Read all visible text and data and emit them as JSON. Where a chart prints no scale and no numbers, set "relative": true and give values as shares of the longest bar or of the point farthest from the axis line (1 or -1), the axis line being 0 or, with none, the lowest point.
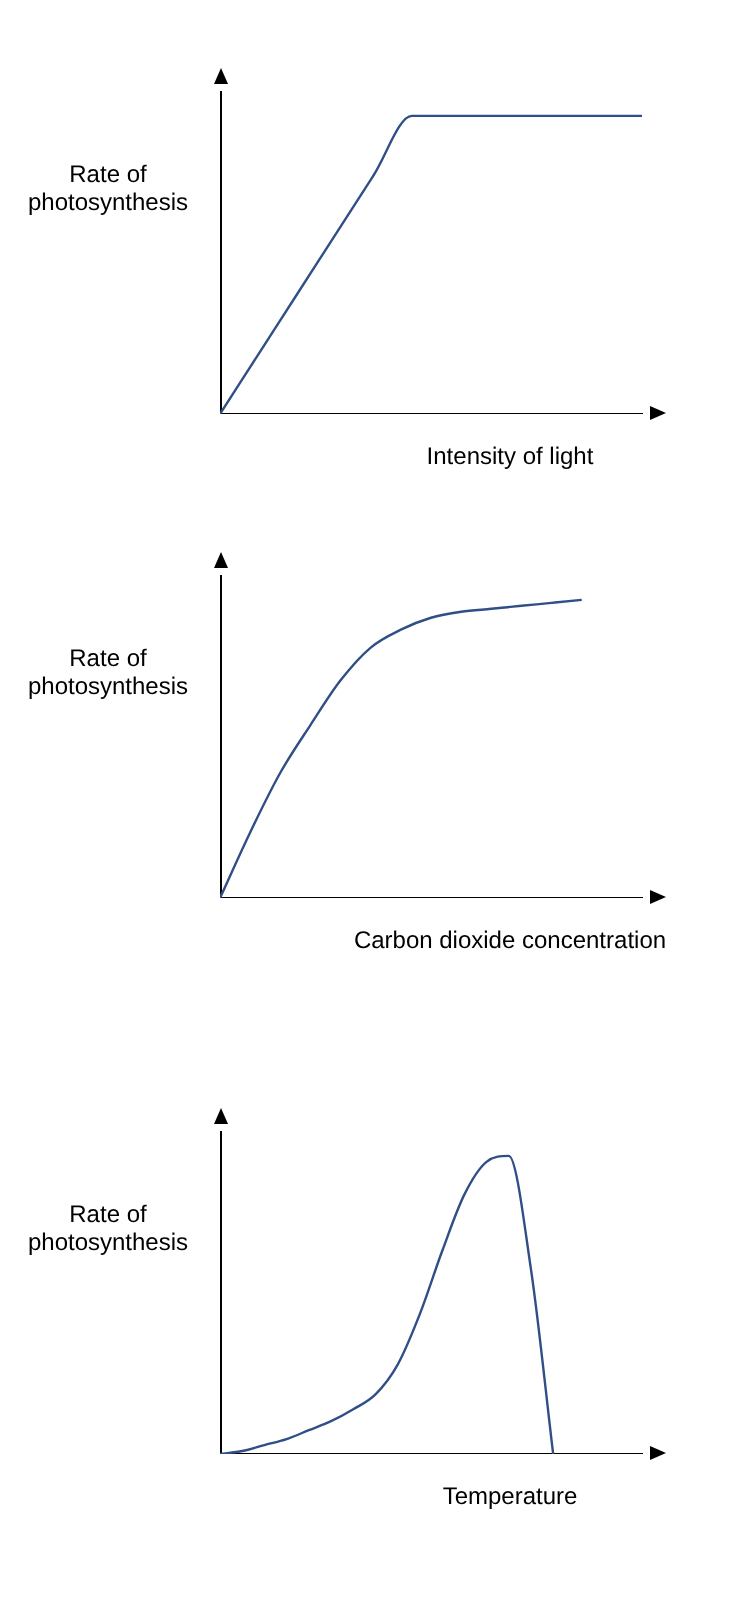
{
  "chart_data": [
    {
      "type": "line",
      "relative": true,
      "ylabel": "Rate of\nphotosynthesis",
      "xlabel": "Intensity of light",
      "marker": "none",
      "categories": [
        null,
        null,
        null,
        null,
        null,
        null,
        null,
        null,
        null,
        null,
        null,
        null
      ],
      "series": [
        {
          "color": "#2f4f86",
          "values": [
            0,
            0.2,
            0.4,
            0.6,
            0.8,
            1,
            1,
            1,
            1,
            1,
            1,
            1
          ]
        }
      ]
    },
    {
      "type": "line",
      "relative": true,
      "ylabel": "Rate of\nphotosynthesis",
      "xlabel": "Carbon dioxide concentration",
      "marker": "none",
      "categories": [
        null,
        null,
        null,
        null,
        null,
        null,
        null,
        null,
        null,
        null,
        null,
        null,
        null,
        null,
        null
      ],
      "series": [
        {
          "color": "#2f4f86",
          "values": [
            0,
            0.22,
            0.42,
            0.58,
            0.73,
            0.84,
            0.9,
            0.94,
            0.96,
            0.97,
            0.98,
            0.99,
            1,
            null,
            null
          ]
        }
      ]
    },
    {
      "type": "line",
      "relative": true,
      "ylabel": "Rate of\nphotosynthesis",
      "xlabel": "Temperature",
      "marker": "none",
      "categories": [
        null,
        null,
        null,
        null,
        null,
        null,
        null,
        null,
        null,
        null,
        null,
        null,
        null,
        null,
        null,
        null,
        null,
        null,
        null,
        null
      ],
      "series": [
        {
          "color": "#2f4f86",
          "values": [
            0,
            0.01,
            0.03,
            0.05,
            0.08,
            0.11,
            0.15,
            0.2,
            0.3,
            0.47,
            0.68,
            0.87,
            0.98,
            1,
            0.62,
            0,
            null,
            null,
            null,
            null
          ]
        }
      ]
    }
  ]
}
